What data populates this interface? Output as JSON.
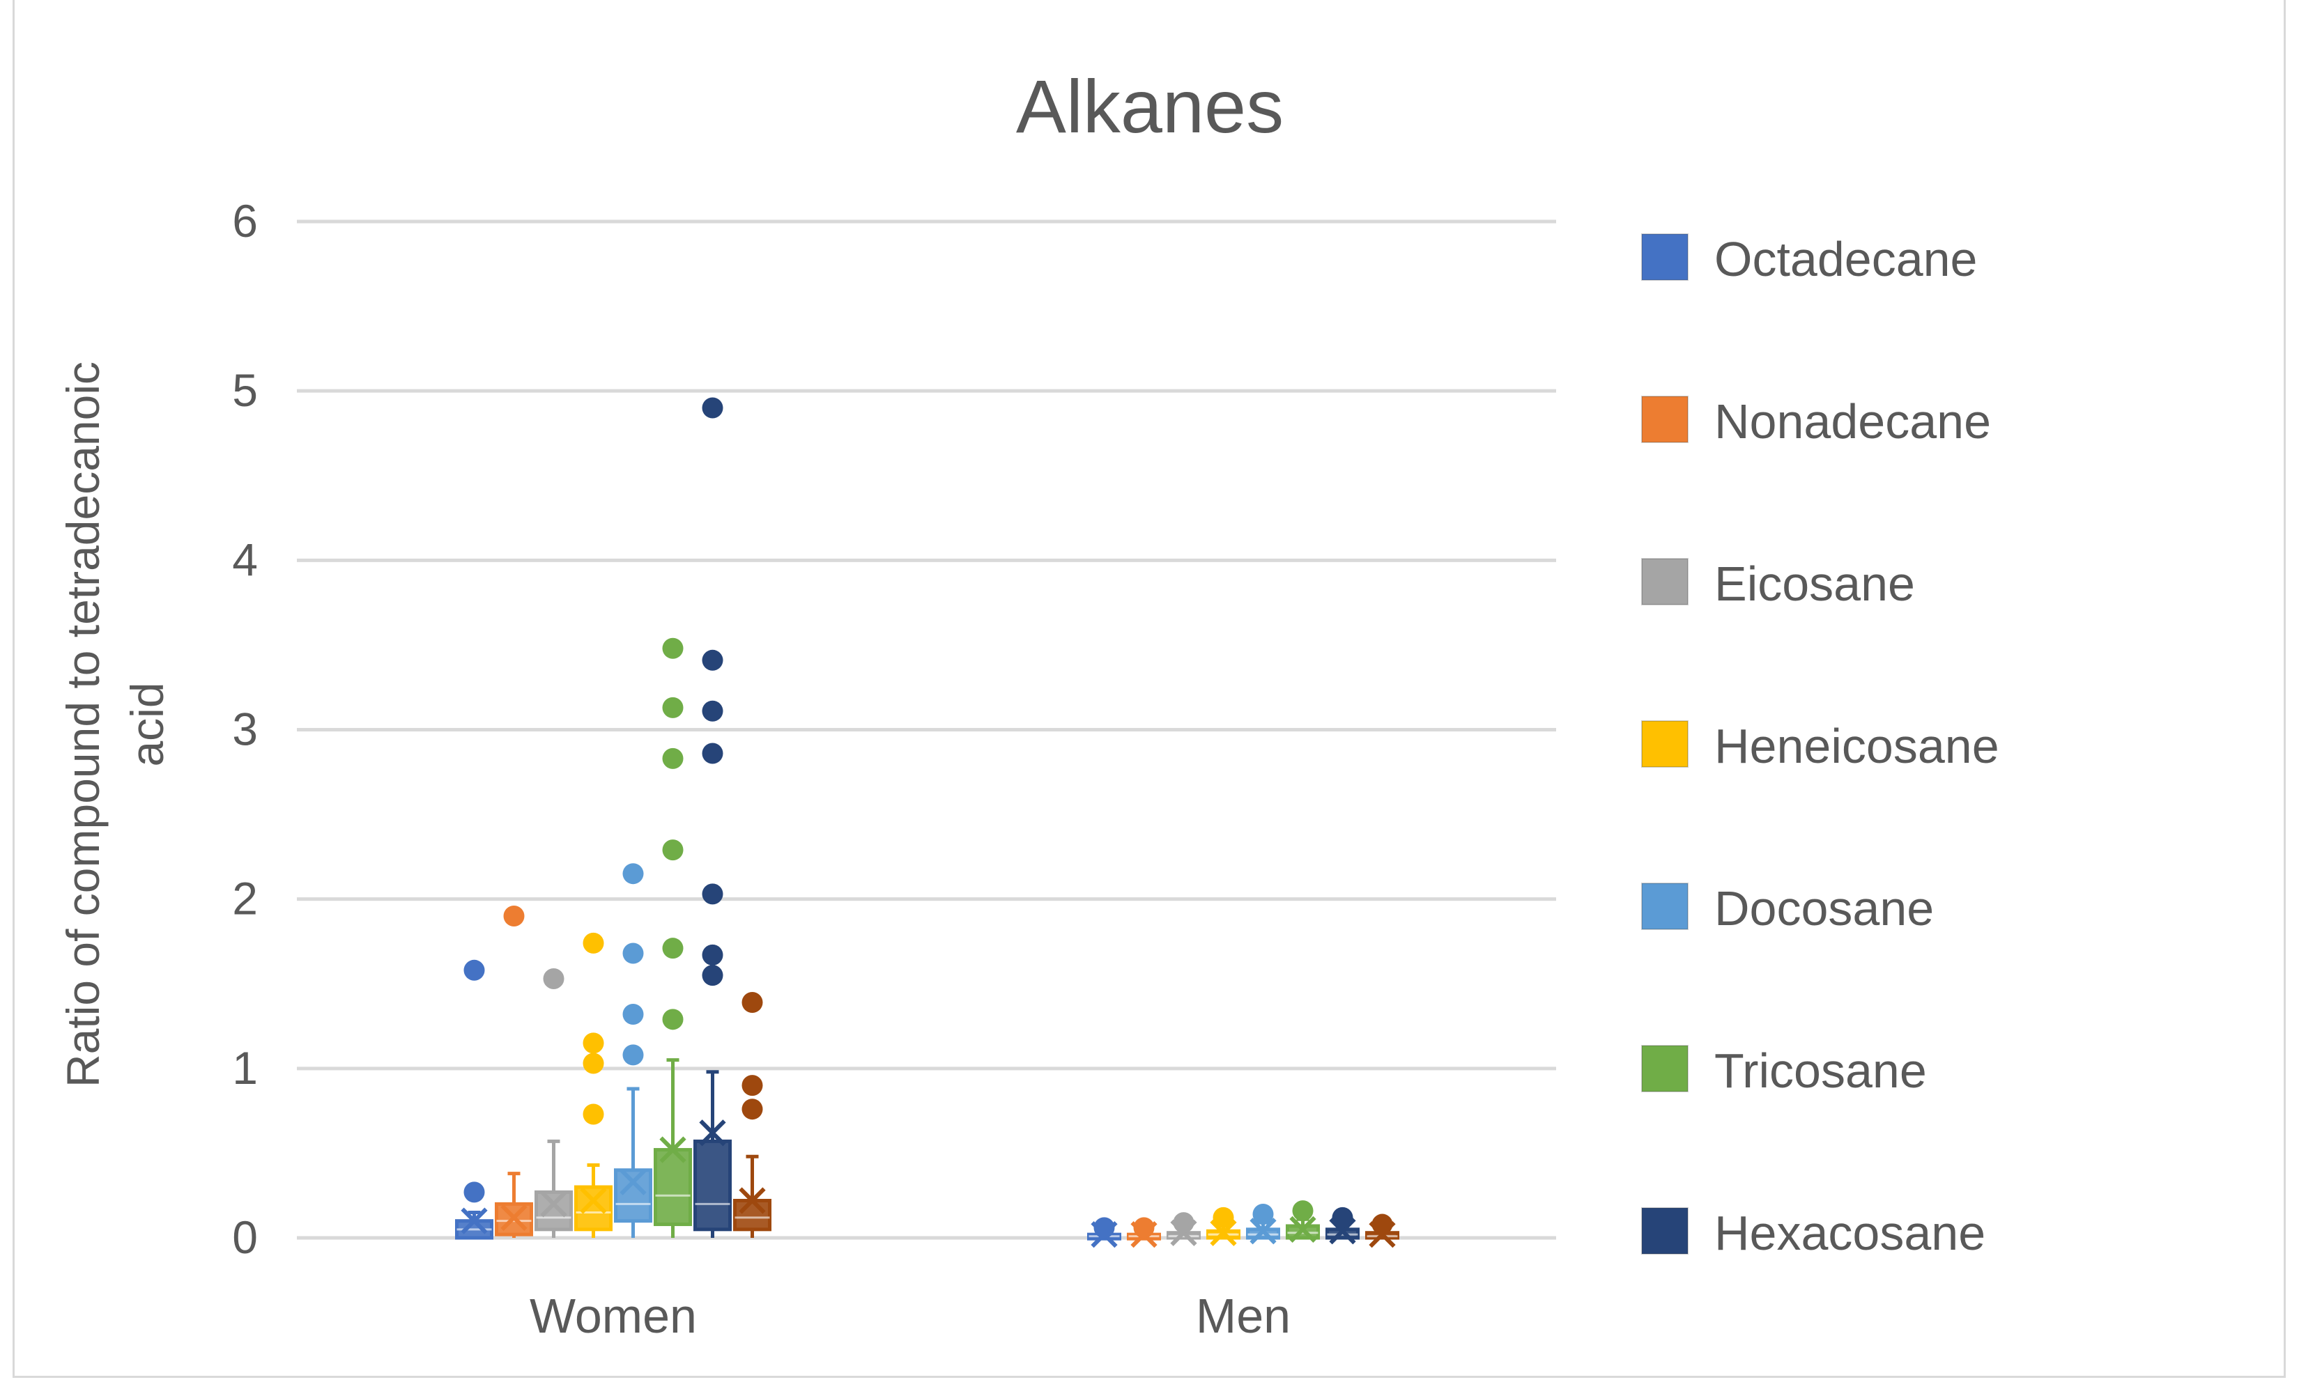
{
  "chart_data": {
    "type": "box",
    "title": "Alkanes",
    "ylabel_lines": [
      "Ratio of compound to tetradecanoic",
      "acid"
    ],
    "xlabel": "",
    "ylim": [
      0,
      6
    ],
    "yticks": [
      0,
      1,
      2,
      3,
      4,
      5,
      6
    ],
    "categories": [
      "Women",
      "Men"
    ],
    "legend_position": "right",
    "series": [
      {
        "name": "Octadecane",
        "color": "#4472C4",
        "boxes": [
          {
            "min": 0.0,
            "q1": 0.0,
            "median": 0.05,
            "q3": 0.1,
            "max": 0.15,
            "mean": 0.1,
            "outliers": [
              0.27,
              1.58
            ]
          },
          {
            "min": 0.0,
            "q1": 0.0,
            "median": 0.01,
            "q3": 0.02,
            "max": 0.04,
            "mean": 0.02,
            "outliers": [
              0.06
            ]
          }
        ]
      },
      {
        "name": "Nonadecane",
        "color": "#ED7D31",
        "boxes": [
          {
            "min": 0.0,
            "q1": 0.02,
            "median": 0.1,
            "q3": 0.2,
            "max": 0.38,
            "mean": 0.12,
            "outliers": [
              1.9
            ]
          },
          {
            "min": 0.0,
            "q1": 0.0,
            "median": 0.01,
            "q3": 0.02,
            "max": 0.04,
            "mean": 0.02,
            "outliers": [
              0.06
            ]
          }
        ]
      },
      {
        "name": "Eicosane",
        "color": "#A5A5A5",
        "boxes": [
          {
            "min": 0.0,
            "q1": 0.05,
            "median": 0.12,
            "q3": 0.27,
            "max": 0.57,
            "mean": 0.2,
            "outliers": [
              1.53
            ]
          },
          {
            "min": 0.0,
            "q1": 0.0,
            "median": 0.01,
            "q3": 0.03,
            "max": 0.06,
            "mean": 0.03,
            "outliers": [
              0.09
            ]
          }
        ]
      },
      {
        "name": "Heneicosane",
        "color": "#FFC000",
        "boxes": [
          {
            "min": 0.0,
            "q1": 0.05,
            "median": 0.15,
            "q3": 0.3,
            "max": 0.43,
            "mean": 0.22,
            "outliers": [
              0.73,
              1.03,
              1.15,
              1.74
            ]
          },
          {
            "min": 0.0,
            "q1": 0.0,
            "median": 0.02,
            "q3": 0.04,
            "max": 0.08,
            "mean": 0.03,
            "outliers": [
              0.12
            ]
          }
        ]
      },
      {
        "name": "Docosane",
        "color": "#5B9BD5",
        "boxes": [
          {
            "min": 0.0,
            "q1": 0.1,
            "median": 0.2,
            "q3": 0.4,
            "max": 0.88,
            "mean": 0.33,
            "outliers": [
              1.08,
              1.32,
              1.68,
              2.15
            ]
          },
          {
            "min": 0.0,
            "q1": 0.0,
            "median": 0.02,
            "q3": 0.05,
            "max": 0.09,
            "mean": 0.04,
            "outliers": [
              0.14
            ]
          }
        ]
      },
      {
        "name": "Tricosane",
        "color": "#70AD47",
        "boxes": [
          {
            "min": 0.0,
            "q1": 0.08,
            "median": 0.25,
            "q3": 0.52,
            "max": 1.05,
            "mean": 0.52,
            "outliers": [
              1.29,
              1.71,
              2.29,
              2.83,
              3.13,
              3.48
            ]
          },
          {
            "min": 0.0,
            "q1": 0.0,
            "median": 0.03,
            "q3": 0.07,
            "max": 0.11,
            "mean": 0.05,
            "outliers": [
              0.16
            ]
          }
        ]
      },
      {
        "name": "Hexacosane",
        "color": "#264478",
        "boxes": [
          {
            "min": 0.0,
            "q1": 0.05,
            "median": 0.2,
            "q3": 0.57,
            "max": 0.98,
            "mean": 0.62,
            "outliers": [
              1.55,
              1.67,
              2.03,
              2.86,
              3.11,
              3.41,
              4.9
            ]
          },
          {
            "min": 0.0,
            "q1": 0.0,
            "median": 0.02,
            "q3": 0.05,
            "max": 0.08,
            "mean": 0.04,
            "outliers": [
              0.12
            ]
          }
        ]
      },
      {
        "name": "Series 8",
        "color": "#9E480E",
        "in_legend": false,
        "boxes": [
          {
            "min": 0.0,
            "q1": 0.05,
            "median": 0.12,
            "q3": 0.22,
            "max": 0.48,
            "mean": 0.22,
            "outliers": [
              0.76,
              0.9,
              1.39
            ]
          },
          {
            "min": 0.0,
            "q1": 0.0,
            "median": 0.01,
            "q3": 0.03,
            "max": 0.05,
            "mean": 0.02,
            "outliers": [
              0.08
            ]
          }
        ]
      }
    ]
  }
}
